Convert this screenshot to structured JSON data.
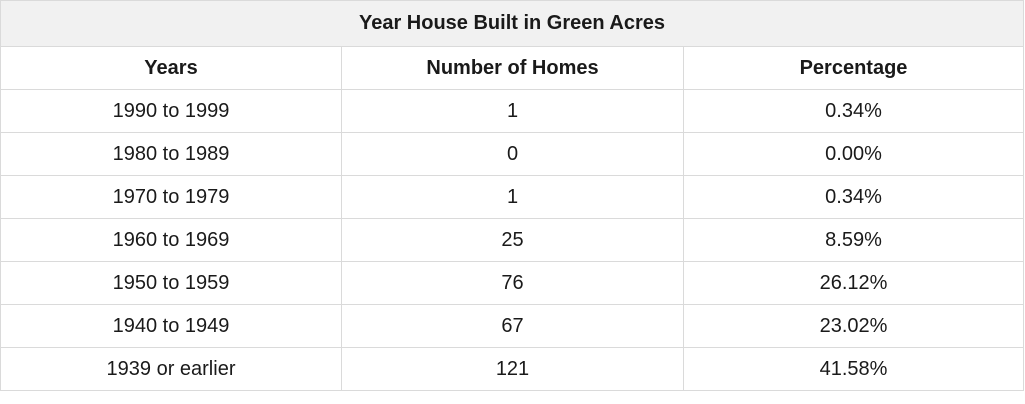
{
  "chart_data": {
    "type": "table",
    "title": "Year House Built in Green Acres",
    "columns": [
      "Years",
      "Number of Homes",
      "Percentage"
    ],
    "rows": [
      [
        "1990 to 1999",
        "1",
        "0.34%"
      ],
      [
        "1980 to 1989",
        "0",
        "0.00%"
      ],
      [
        "1970 to 1979",
        "1",
        "0.34%"
      ],
      [
        "1960 to 1969",
        "25",
        "8.59%"
      ],
      [
        "1950 to 1959",
        "76",
        "26.12%"
      ],
      [
        "1940 to 1949",
        "67",
        "23.02%"
      ],
      [
        "1939 or earlier",
        "121",
        "41.58%"
      ]
    ]
  }
}
